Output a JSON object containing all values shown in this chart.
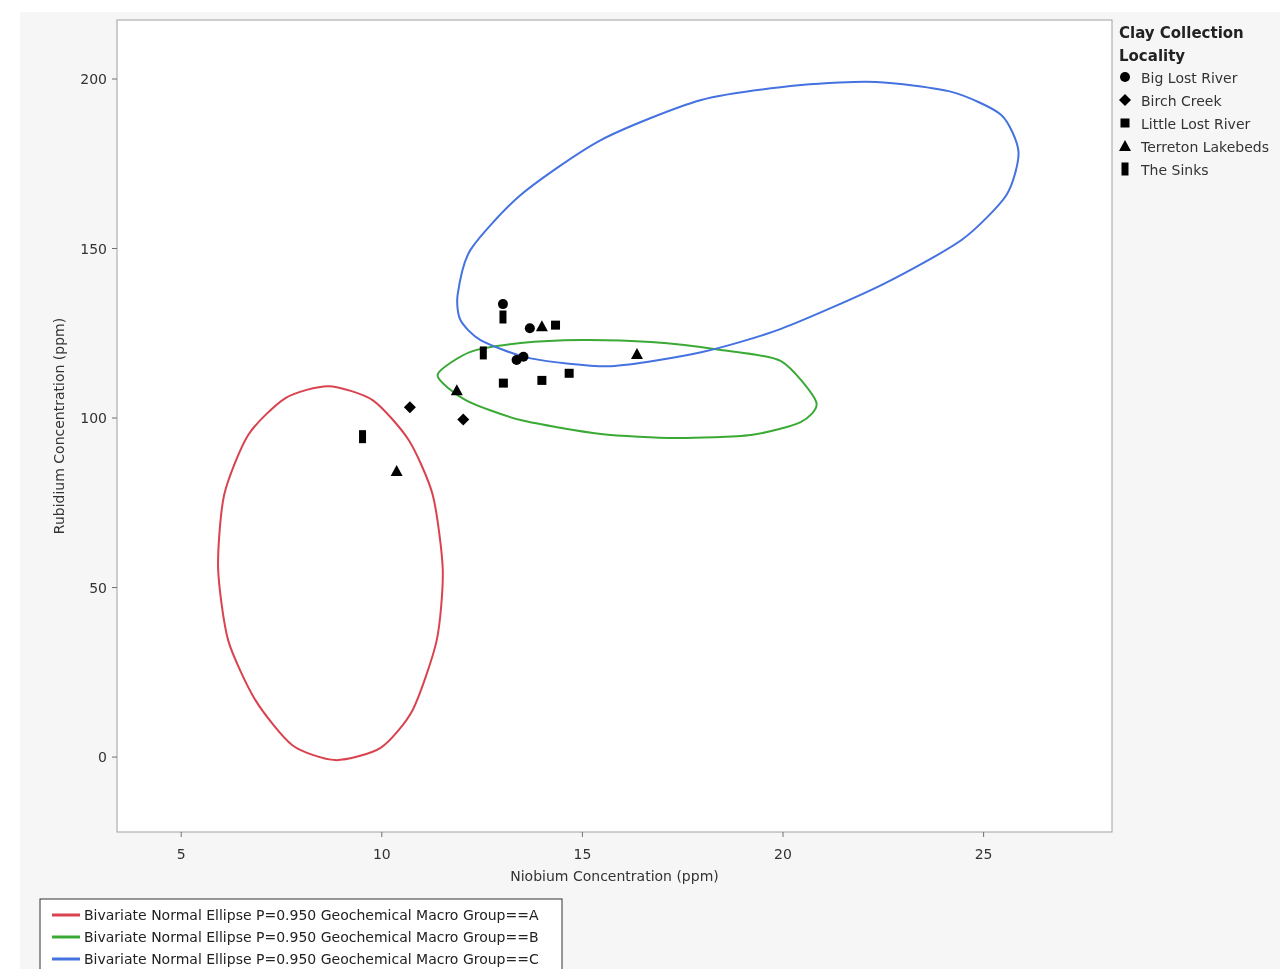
{
  "chart_data": {
    "type": "scatter",
    "xlabel": "Niobium Concentration (ppm)",
    "ylabel": "Rubidium Concentration (ppm)",
    "legend_title": "Clay Collection Locality",
    "xlim": [
      3.4,
      28.2
    ],
    "ylim": [
      -22.1,
      217.4
    ],
    "xticks": [
      5,
      10,
      15,
      20,
      25
    ],
    "yticks": [
      0,
      50,
      100,
      150,
      200
    ],
    "grid": false,
    "legend": "right",
    "annotations": [
      "Bivariate Normal Ellipse P=0.950 Geochemical Macro Group==A",
      "Bivariate Normal Ellipse P=0.950 Geochemical Macro Group==B",
      "Bivariate Normal Ellipse P=0.950 Geochemical Macro Group==C"
    ],
    "series": [
      {
        "name": "Big Lost River",
        "color": "#000000",
        "marker": "circle",
        "x": [
          13.02,
          13.69,
          13.36,
          13.53
        ],
        "values": [
          133.6,
          126.5,
          117.1,
          118.1
        ]
      },
      {
        "name": "Birch Creek",
        "color": "#000000",
        "marker": "diamond",
        "x": [
          10.7,
          12.03
        ],
        "values": [
          103.2,
          99.6
        ]
      },
      {
        "name": "Little Lost River",
        "color": "#000000",
        "marker": "square",
        "x": [
          14.33,
          14.67,
          13.03,
          13.99
        ],
        "values": [
          127.4,
          113.2,
          110.3,
          111.1
        ]
      },
      {
        "name": "Terreton Lakebeds",
        "color": "#000000",
        "marker": "triangle",
        "x": [
          13.99,
          16.36,
          11.87,
          10.37
        ],
        "values": [
          127.1,
          118.9,
          108.2,
          84.4
        ]
      },
      {
        "name": "The Sinks",
        "color": "#000000",
        "marker": "rectangle",
        "x": [
          13.02,
          12.53,
          9.52
        ],
        "values": [
          129.8,
          119.2,
          94.5
        ]
      }
    ]
  }
}
